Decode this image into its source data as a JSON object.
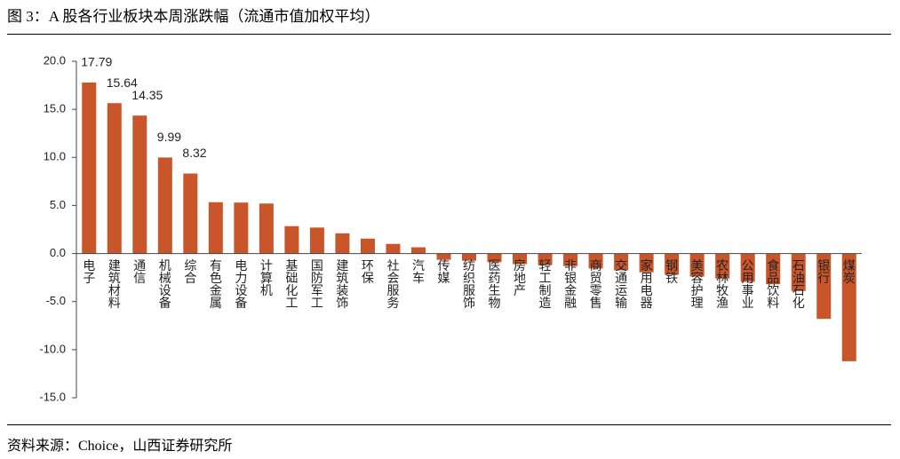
{
  "chart_data": {
    "type": "bar",
    "title": "图 3：A 股各行业板块本周涨跌幅（流通市值加权平均）",
    "source": "资料来源：Choice，山西证券研究所",
    "categories": [
      "电子",
      "建筑材料",
      "通信",
      "机械设备",
      "综合",
      "有色金属",
      "电力设备",
      "计算机",
      "基础化工",
      "国防军工",
      "建筑装饰",
      "环保",
      "社会服务",
      "汽车",
      "传媒",
      "纺织服饰",
      "医药生物",
      "房地产",
      "轻工制造",
      "非银金融",
      "商贸零售",
      "交通运输",
      "家用电器",
      "钢铁",
      "美容护理",
      "农林牧渔",
      "公用事业",
      "食品饮料",
      "石油石化",
      "银行",
      "煤炭"
    ],
    "values": [
      17.79,
      15.64,
      14.35,
      9.99,
      8.32,
      5.34,
      5.3,
      5.2,
      2.85,
      2.7,
      2.1,
      1.55,
      1.0,
      0.65,
      -0.65,
      -0.75,
      -0.9,
      -1.1,
      -1.2,
      -1.3,
      -1.55,
      -1.75,
      -1.95,
      -2.2,
      -2.4,
      -2.6,
      -2.95,
      -3.2,
      -3.9,
      -6.8,
      -11.2
    ],
    "value_labels": [
      "17.79",
      "15.64",
      "14.35",
      "9.99",
      "8.32",
      null,
      null,
      null,
      null,
      null,
      null,
      null,
      null,
      null,
      null,
      null,
      null,
      null,
      null,
      null,
      null,
      null,
      null,
      null,
      null,
      null,
      null,
      null,
      null,
      null,
      null
    ],
    "color": "#c8562a",
    "ylim": [
      -15,
      20
    ],
    "yticks": [
      {
        "value": -15,
        "label": "-15.0"
      },
      {
        "value": -10,
        "label": "-10.0"
      },
      {
        "value": -5,
        "label": "-5.0"
      },
      {
        "value": 0,
        "label": "0.0"
      },
      {
        "value": 5,
        "label": "5.0"
      },
      {
        "value": 10,
        "label": "10.0"
      },
      {
        "value": 15,
        "label": "15.0"
      },
      {
        "value": 20,
        "label": "20.0"
      }
    ],
    "grid": false
  }
}
